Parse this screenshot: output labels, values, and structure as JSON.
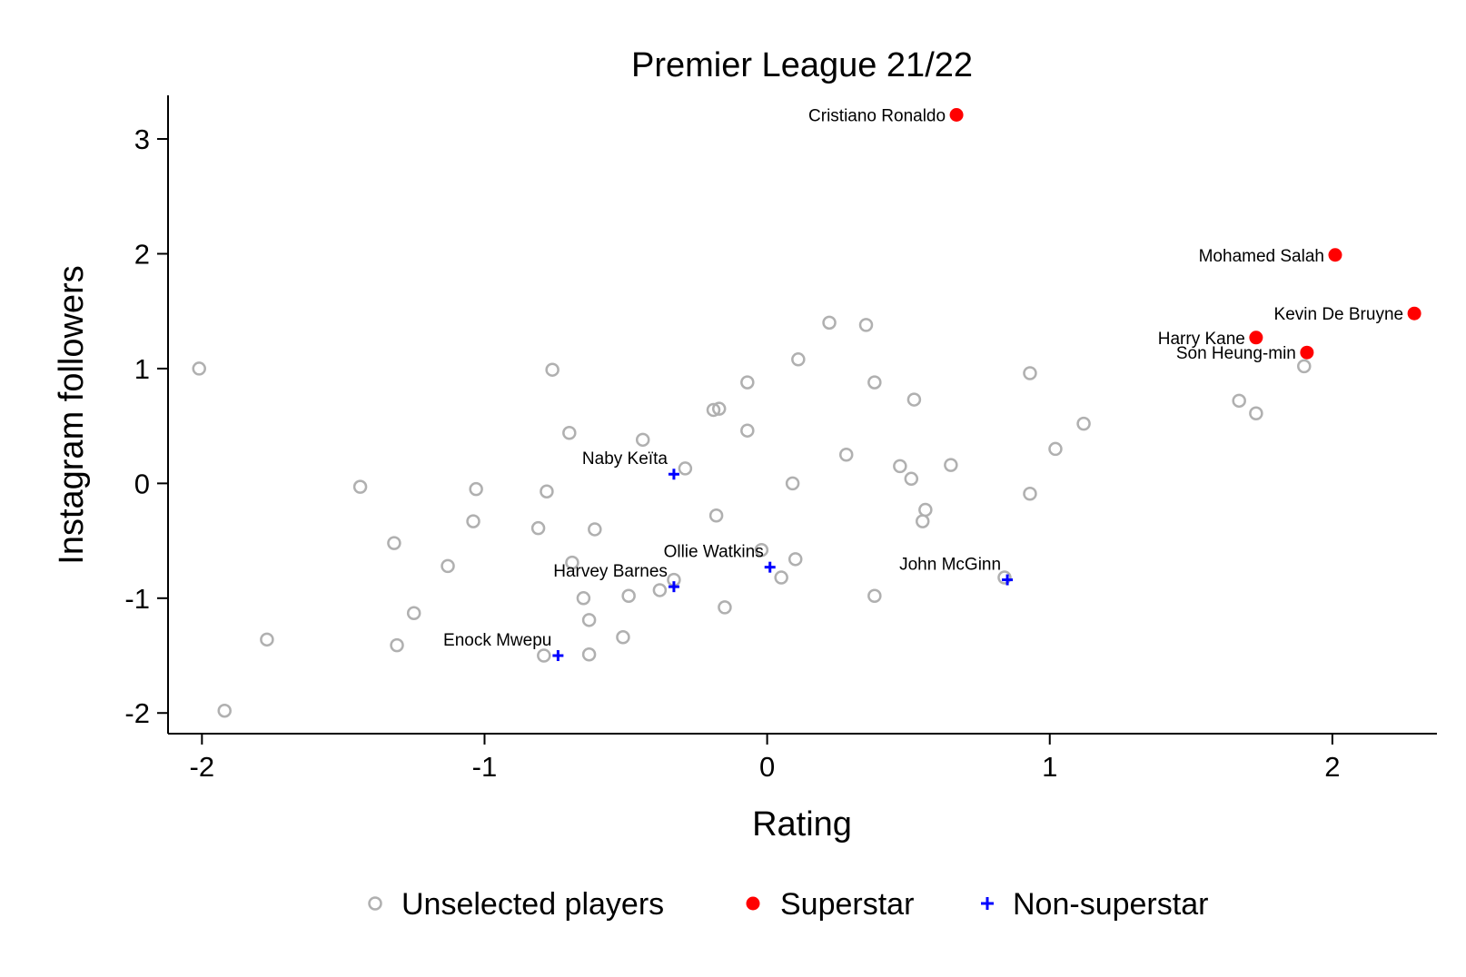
{
  "chart_data": {
    "type": "scatter",
    "title": "Premier League 21/22",
    "xlabel": "Rating",
    "ylabel": "Instagram followers",
    "xlim": [
      -2.12,
      2.37
    ],
    "ylim": [
      -2.18,
      3.38
    ],
    "xticks": [
      -2,
      -1,
      0,
      1,
      2
    ],
    "yticks": [
      -2,
      -1,
      0,
      1,
      2,
      3
    ],
    "xtick_labels": [
      "-2",
      "-1",
      "0",
      "1",
      "2"
    ],
    "ytick_labels": [
      "-2",
      "-1",
      "0",
      "1",
      "2",
      "3"
    ],
    "grid": false,
    "legend_position": "bottom",
    "colors": {
      "unselected": "#b0b0b0",
      "superstar": "#ff0000",
      "non_superstar": "#0000ff"
    },
    "series": [
      {
        "name": "Unselected players",
        "marker": "hollow-circle",
        "points": [
          {
            "x": -2.01,
            "y": 1.0
          },
          {
            "x": -1.92,
            "y": -1.98
          },
          {
            "x": -1.77,
            "y": -1.36
          },
          {
            "x": -1.44,
            "y": -0.03
          },
          {
            "x": -1.32,
            "y": -0.52
          },
          {
            "x": -1.31,
            "y": -1.41
          },
          {
            "x": -1.25,
            "y": -1.13
          },
          {
            "x": -1.13,
            "y": -0.72
          },
          {
            "x": -1.04,
            "y": -0.33
          },
          {
            "x": -1.03,
            "y": -0.05
          },
          {
            "x": -0.81,
            "y": -0.39
          },
          {
            "x": -0.79,
            "y": -1.5
          },
          {
            "x": -0.78,
            "y": -0.07
          },
          {
            "x": -0.76,
            "y": 0.99
          },
          {
            "x": -0.7,
            "y": 0.44
          },
          {
            "x": -0.69,
            "y": -0.69
          },
          {
            "x": -0.65,
            "y": -1.0
          },
          {
            "x": -0.63,
            "y": -1.19
          },
          {
            "x": -0.63,
            "y": -1.49
          },
          {
            "x": -0.61,
            "y": -0.4
          },
          {
            "x": -0.51,
            "y": -1.34
          },
          {
            "x": -0.49,
            "y": -0.98
          },
          {
            "x": -0.44,
            "y": 0.38
          },
          {
            "x": -0.38,
            "y": -0.93
          },
          {
            "x": -0.33,
            "y": -0.84
          },
          {
            "x": -0.29,
            "y": 0.13
          },
          {
            "x": -0.19,
            "y": 0.64
          },
          {
            "x": -0.17,
            "y": 0.65
          },
          {
            "x": -0.18,
            "y": -0.28
          },
          {
            "x": -0.15,
            "y": -1.08
          },
          {
            "x": -0.07,
            "y": 0.88
          },
          {
            "x": -0.07,
            "y": 0.46
          },
          {
            "x": -0.02,
            "y": -0.58
          },
          {
            "x": 0.05,
            "y": -0.82
          },
          {
            "x": 0.09,
            "y": 0.0
          },
          {
            "x": 0.1,
            "y": -0.66
          },
          {
            "x": 0.11,
            "y": 1.08
          },
          {
            "x": 0.22,
            "y": 1.4
          },
          {
            "x": 0.28,
            "y": 0.25
          },
          {
            "x": 0.35,
            "y": 1.38
          },
          {
            "x": 0.38,
            "y": 0.88
          },
          {
            "x": 0.38,
            "y": -0.98
          },
          {
            "x": 0.47,
            "y": 0.15
          },
          {
            "x": 0.51,
            "y": 0.04
          },
          {
            "x": 0.52,
            "y": 0.73
          },
          {
            "x": 0.55,
            "y": -0.33
          },
          {
            "x": 0.56,
            "y": -0.23
          },
          {
            "x": 0.65,
            "y": 0.16
          },
          {
            "x": 0.84,
            "y": -0.82
          },
          {
            "x": 0.93,
            "y": 0.96
          },
          {
            "x": 0.93,
            "y": -0.09
          },
          {
            "x": 1.02,
            "y": 0.3
          },
          {
            "x": 1.12,
            "y": 0.52
          },
          {
            "x": 1.67,
            "y": 0.72
          },
          {
            "x": 1.73,
            "y": 0.61
          },
          {
            "x": 1.9,
            "y": 1.02
          }
        ]
      },
      {
        "name": "Superstar",
        "marker": "filled-circle",
        "points": [
          {
            "label": "Cristiano Ronaldo",
            "x": 0.67,
            "y": 3.21
          },
          {
            "label": "Mohamed Salah",
            "x": 2.01,
            "y": 1.99
          },
          {
            "label": "Kevin De Bruyne",
            "x": 2.29,
            "y": 1.48
          },
          {
            "label": "Harry Kane",
            "x": 1.73,
            "y": 1.27
          },
          {
            "label": "Son Heung-min",
            "x": 1.91,
            "y": 1.14
          }
        ]
      },
      {
        "name": "Non-superstar",
        "marker": "plus",
        "points": [
          {
            "label": "Naby Keïta",
            "x": -0.33,
            "y": 0.08
          },
          {
            "label": "Ollie Watkins",
            "x": 0.01,
            "y": -0.73
          },
          {
            "label": "Harvey Barnes",
            "x": -0.33,
            "y": -0.9
          },
          {
            "label": "John McGinn",
            "x": 0.85,
            "y": -0.84
          },
          {
            "label": "Enock Mwepu",
            "x": -0.74,
            "y": -1.5
          }
        ]
      }
    ]
  }
}
